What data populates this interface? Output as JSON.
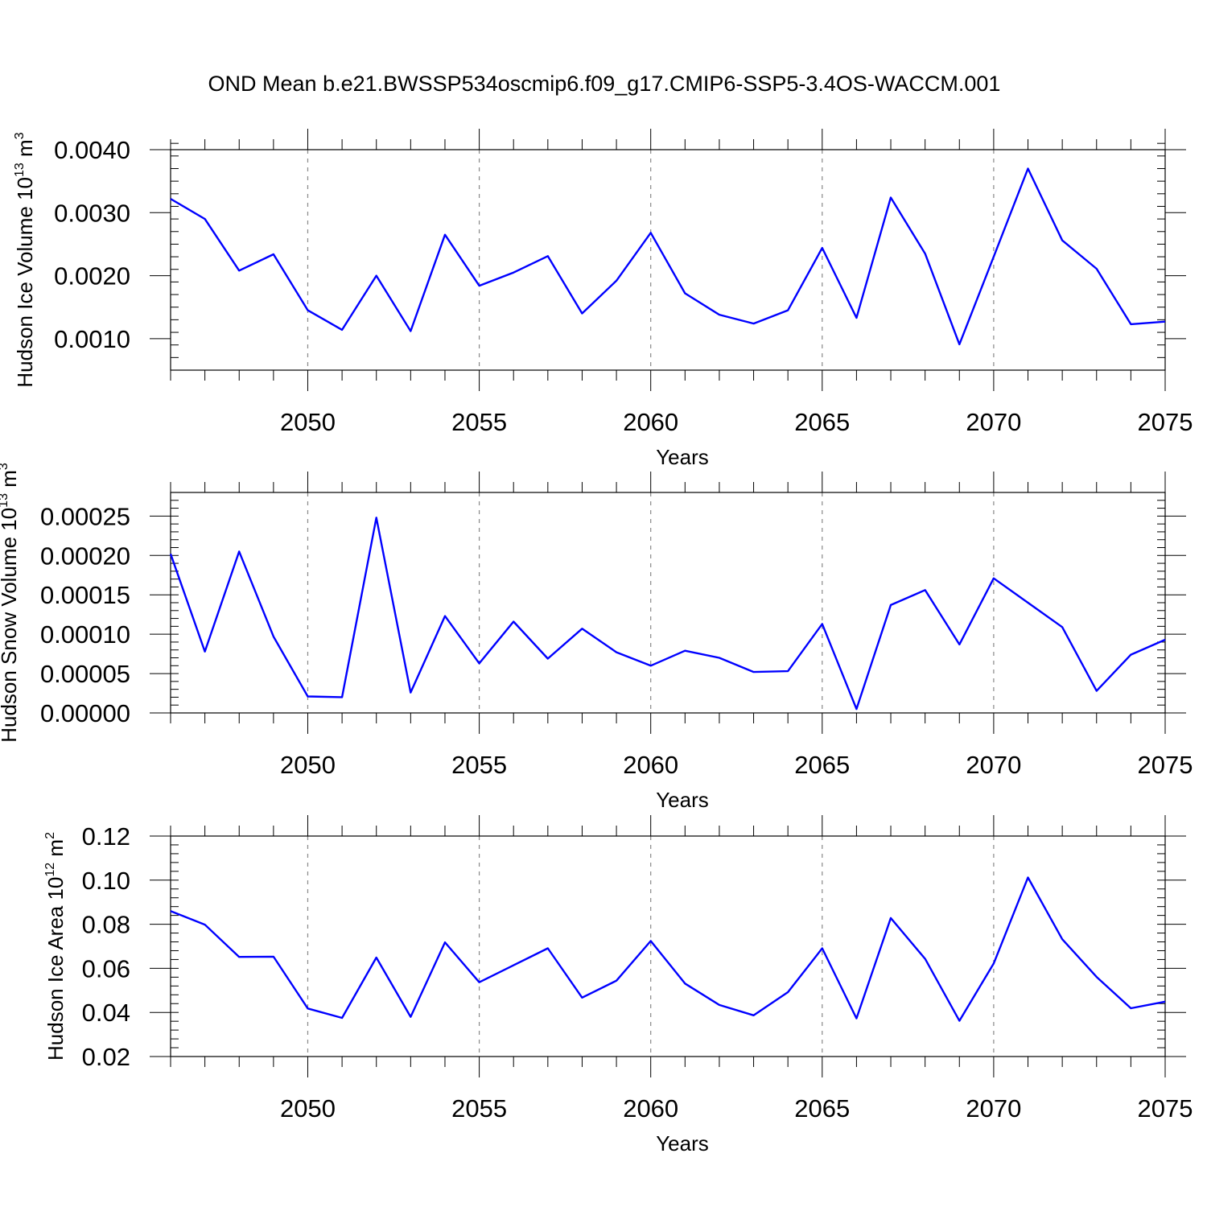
{
  "title": "OND Mean b.e21.BWSSP534oscmip6.f09_g17.CMIP6-SSP5-3.4OS-WACCM.001",
  "chart_data": [
    {
      "type": "line",
      "id": "ice-volume",
      "title": "",
      "xlabel": "Years",
      "ylabel": {
        "text": "Hudson Ice Volume 10",
        "sup": "13",
        "unit": " m",
        "unit_sup": "3"
      },
      "xlim": [
        2046,
        2075
      ],
      "ylim": [
        0.0005,
        0.004
      ],
      "xticks": [
        2050,
        2055,
        2060,
        2065,
        2070,
        2075
      ],
      "yticks": [
        0.001,
        0.002,
        0.003,
        0.004
      ],
      "ytick_labels": [
        "0.0010",
        "0.0020",
        "0.0030",
        "0.0040"
      ],
      "yminor_step": 0.0002,
      "x": [
        2046,
        2047,
        2048,
        2049,
        2050,
        2051,
        2052,
        2053,
        2054,
        2055,
        2056,
        2057,
        2058,
        2059,
        2060,
        2061,
        2062,
        2063,
        2064,
        2065,
        2066,
        2067,
        2068,
        2069,
        2070,
        2071,
        2072,
        2073,
        2074,
        2075
      ],
      "series": [
        {
          "name": "Hudson Ice Volume",
          "color": "#0000ff",
          "values": [
            0.00322,
            0.0029,
            0.00208,
            0.00234,
            0.00145,
            0.00114,
            0.002,
            0.00112,
            0.00265,
            0.00184,
            0.00205,
            0.00231,
            0.0014,
            0.00192,
            0.00268,
            0.00172,
            0.00138,
            0.00124,
            0.00145,
            0.00244,
            0.00133,
            0.00324,
            0.00235,
            0.00091,
            0.0023,
            0.0037,
            0.00256,
            0.00211,
            0.00123,
            0.00127
          ]
        }
      ]
    },
    {
      "type": "line",
      "id": "snow-volume",
      "title": "",
      "xlabel": "Years",
      "ylabel": {
        "text": "Hudson Snow Volume 10",
        "sup": "13",
        "unit": " m",
        "unit_sup": "3"
      },
      "xlim": [
        2046,
        2075
      ],
      "ylim": [
        0.0,
        0.00028
      ],
      "xticks": [
        2050,
        2055,
        2060,
        2065,
        2070,
        2075
      ],
      "yticks": [
        0.0,
        5e-05,
        0.0001,
        0.00015,
        0.0002,
        0.00025
      ],
      "ytick_labels": [
        "0.00000",
        "0.00005",
        "0.00010",
        "0.00015",
        "0.00020",
        "0.00025"
      ],
      "yminor_step": 1e-05,
      "x": [
        2046,
        2047,
        2048,
        2049,
        2050,
        2051,
        2052,
        2053,
        2054,
        2055,
        2056,
        2057,
        2058,
        2059,
        2060,
        2061,
        2062,
        2063,
        2064,
        2065,
        2066,
        2067,
        2068,
        2069,
        2070,
        2071,
        2072,
        2073,
        2074,
        2075
      ],
      "series": [
        {
          "name": "Hudson Snow Volume",
          "color": "#0000ff",
          "values": [
            0.000202,
            7.8e-05,
            0.000205,
            9.7e-05,
            2.1e-05,
            2e-05,
            0.000248,
            2.6e-05,
            0.000123,
            6.3e-05,
            0.000116,
            6.9e-05,
            0.000107,
            7.7e-05,
            6e-05,
            7.9e-05,
            7e-05,
            5.2e-05,
            5.3e-05,
            0.000113,
            5e-06,
            0.000137,
            0.000156,
            8.7e-05,
            0.000171,
            0.00014,
            0.000109,
            2.8e-05,
            7.4e-05,
            9.3e-05
          ]
        }
      ]
    },
    {
      "type": "line",
      "id": "ice-area",
      "title": "",
      "xlabel": "Years",
      "ylabel": {
        "text": "Hudson Ice Area 10",
        "sup": "12",
        "unit": " m",
        "unit_sup": "2"
      },
      "xlim": [
        2046,
        2075
      ],
      "ylim": [
        0.02,
        0.12
      ],
      "xticks": [
        2050,
        2055,
        2060,
        2065,
        2070,
        2075
      ],
      "yticks": [
        0.02,
        0.04,
        0.06,
        0.08,
        0.1,
        0.12
      ],
      "ytick_labels": [
        "0.02",
        "0.04",
        "0.06",
        "0.08",
        "0.10",
        "0.12"
      ],
      "yminor_step": 0.004,
      "x": [
        2046,
        2047,
        2048,
        2049,
        2050,
        2051,
        2052,
        2053,
        2054,
        2055,
        2056,
        2057,
        2058,
        2059,
        2060,
        2061,
        2062,
        2063,
        2064,
        2065,
        2066,
        2067,
        2068,
        2069,
        2070,
        2071,
        2072,
        2073,
        2074,
        2075
      ],
      "series": [
        {
          "name": "Hudson Ice Area",
          "color": "#0000ff",
          "values": [
            0.086,
            0.0798,
            0.0652,
            0.0653,
            0.0418,
            0.0375,
            0.0649,
            0.038,
            0.0718,
            0.0537,
            0.0614,
            0.0691,
            0.0467,
            0.0544,
            0.0724,
            0.0531,
            0.0434,
            0.0387,
            0.0492,
            0.0691,
            0.0373,
            0.0828,
            0.0643,
            0.0362,
            0.0622,
            0.1012,
            0.0732,
            0.0561,
            0.0419,
            0.0449
          ]
        }
      ]
    }
  ]
}
